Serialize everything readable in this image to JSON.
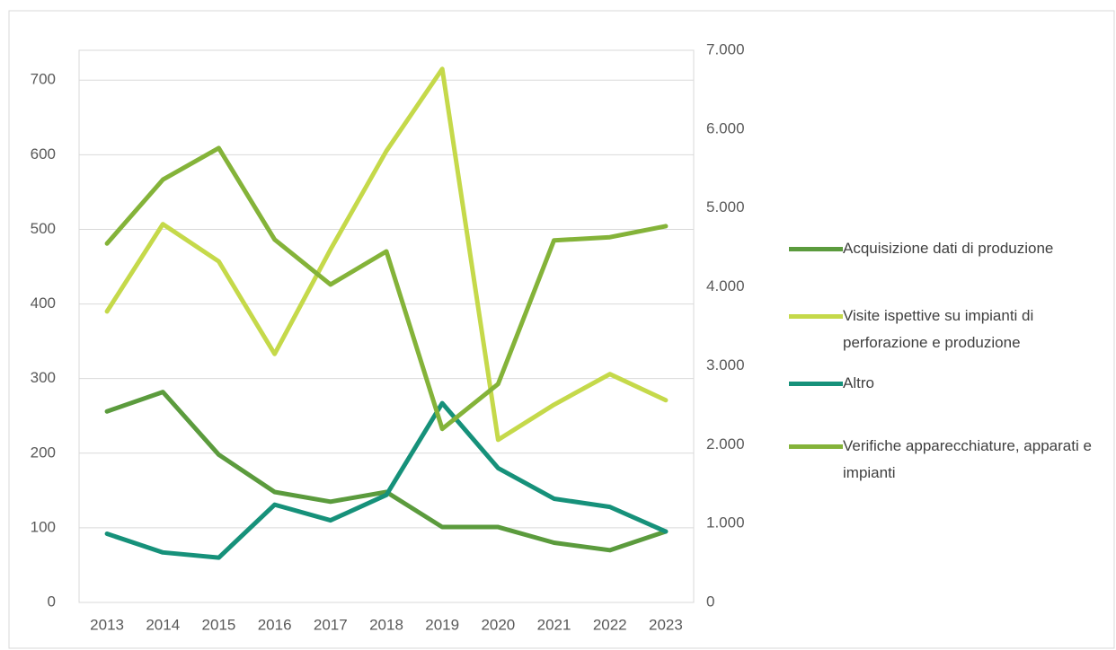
{
  "chart_data": {
    "type": "line",
    "categories": [
      "2013",
      "2014",
      "2015",
      "2016",
      "2017",
      "2018",
      "2019",
      "2020",
      "2021",
      "2022",
      "2023"
    ],
    "series": [
      {
        "name": "Acquisizione dati di produzione",
        "color": "#5b9b3d",
        "values": [
          256,
          282,
          198,
          148,
          135,
          148,
          101,
          101,
          80,
          70,
          95
        ]
      },
      {
        "name": "Visite ispettive su impianti di perforazione e produzione",
        "color": "#c5d94a",
        "values": [
          390,
          507,
          457,
          333,
          473,
          605,
          715,
          218,
          265,
          306,
          271
        ]
      },
      {
        "name": "Altro",
        "color": "#16917a",
        "values": [
          92,
          67,
          60,
          131,
          110,
          144,
          267,
          180,
          139,
          128,
          95
        ]
      },
      {
        "name": "Verifiche apparecchiature, apparati e impianti",
        "color": "#84b339",
        "axis": "y2",
        "values": [
          4550,
          5360,
          5760,
          4600,
          4030,
          4450,
          2200,
          2770,
          4590,
          4630,
          4770
        ]
      }
    ],
    "ylim": [
      0,
      740
    ],
    "yticks": [
      0,
      100,
      200,
      300,
      400,
      500,
      600,
      700
    ],
    "y2lim": [
      0,
      7000
    ],
    "y2ticks": [
      0,
      {
        "value": 1000,
        "label": "1.000"
      },
      {
        "value": 2000,
        "label": "2.000"
      },
      {
        "value": 3000,
        "label": "3.000"
      },
      {
        "value": 4000,
        "label": "4.000"
      },
      {
        "value": 5000,
        "label": "5.000"
      },
      {
        "value": 6000,
        "label": "6.000"
      },
      {
        "value": 7000,
        "label": "7.000"
      }
    ],
    "grid": true
  }
}
